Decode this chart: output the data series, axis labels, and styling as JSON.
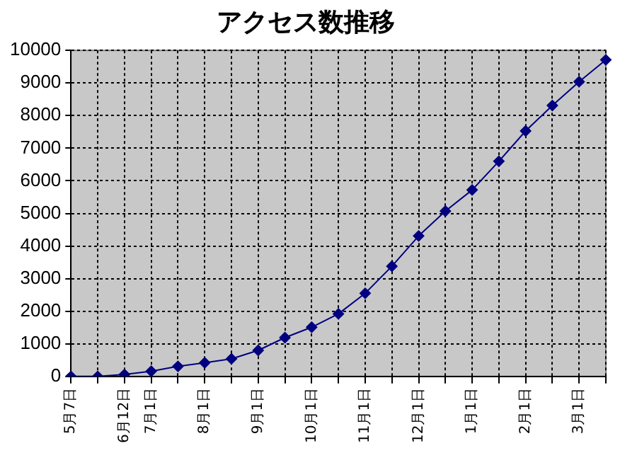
{
  "chart_data": {
    "type": "line",
    "title": "アクセス数推移",
    "categories": [
      "5月7日",
      null,
      "6月12日",
      "7月1日",
      null,
      "8月1日",
      null,
      "9月1日",
      null,
      "10月1日",
      null,
      "11月1日",
      null,
      "12月1日",
      null,
      "1月1日",
      null,
      "2月1日",
      null,
      "3月1日",
      null
    ],
    "series": [
      {
        "color": "#000080",
        "values": [
          0,
          0,
          60,
          160,
          310,
          420,
          540,
          800,
          1190,
          1510,
          1920,
          2550,
          3380,
          4310,
          5070,
          5720,
          6600,
          7530,
          8310,
          9040,
          9710
        ]
      }
    ],
    "ylim": [
      0,
      10000
    ],
    "yticks": [
      0,
      1000,
      2000,
      3000,
      4000,
      5000,
      6000,
      7000,
      8000,
      9000,
      10000
    ],
    "grid": true,
    "legend": false,
    "marker": "diamond",
    "line_style": "solid"
  }
}
